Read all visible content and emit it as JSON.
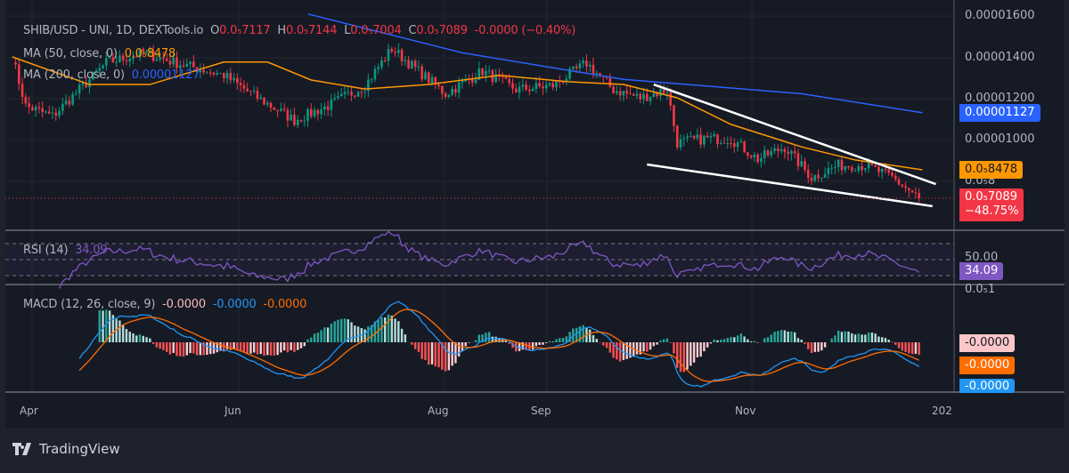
{
  "legend": {
    "symbol": "SHIB/USD - UNI, 1D, DEXTools.io",
    "open_label": "O",
    "open": "0.0₅7117",
    "high_label": "H",
    "high": "0.0₅7144",
    "low_label": "L",
    "low": "0.0₅7004",
    "close_label": "C",
    "close": "0.0₅7089",
    "change": "-0.0000 (−0.40%)",
    "ma50_label": "MA (50, close, 0)",
    "ma50_value": "0.0₅8478",
    "ma200_label": "MA (200, close, 0)",
    "ma200_value": "0.00001127",
    "rsi_label": "RSI (14)",
    "rsi_value": "34.09",
    "macd_label": "MACD (12, 26, close, 9)",
    "macd_hist": "-0.0000",
    "macd_line": "-0.0000",
    "macd_signal": "-0.0000"
  },
  "price_axis": [
    "0.00001600",
    "0.00001400",
    "0.00001200",
    "0.00001000",
    "0.0₅8"
  ],
  "tags": {
    "ma200": "0.00001127",
    "ma50": "0.0₅8478",
    "price": "0.0₅7089",
    "price_change": "−48.75%",
    "rsi_axis": "50.00",
    "rsi": "34.09",
    "macd_axis": "0.0₅1",
    "macd_hist": "-0.0000",
    "macd_signal": "-0.0000",
    "macd_line": "-0.0000"
  },
  "time_axis": [
    "Apr",
    "Jun",
    "Aug",
    "Sep",
    "Nov",
    "202"
  ],
  "brand": "TradingView",
  "colors": {
    "up": "#089981",
    "down": "#f23645",
    "ma50": "#ff9800",
    "ma200": "#2962ff",
    "rsi": "#7e57c2",
    "macd": "#2196f3",
    "signal": "#ff6d00"
  },
  "chart_data": {
    "type": "candlestick",
    "unit": "USD × 1e-6",
    "close_approx": [
      [
        "2023-03-27",
        14.0
      ],
      [
        "2023-03-31",
        11.6
      ],
      [
        "2023-04-08",
        11.1
      ],
      [
        "2023-04-16",
        12.4
      ],
      [
        "2023-04-24",
        13.7
      ],
      [
        "2023-05-05",
        14.2
      ],
      [
        "2023-05-15",
        13.7
      ],
      [
        "2023-05-29",
        13.1
      ],
      [
        "2023-06-08",
        12.0
      ],
      [
        "2023-06-19",
        10.9
      ],
      [
        "2023-06-29",
        11.6
      ],
      [
        "2023-07-10",
        12.6
      ],
      [
        "2023-07-18",
        14.4
      ],
      [
        "2023-07-26",
        13.3
      ],
      [
        "2023-08-03",
        12.2
      ],
      [
        "2023-08-14",
        13.3
      ],
      [
        "2023-08-24",
        12.4
      ],
      [
        "2023-09-04",
        12.6
      ],
      [
        "2023-09-14",
        13.7
      ],
      [
        "2023-09-22",
        12.4
      ],
      [
        "2023-09-30",
        12.0
      ],
      [
        "2023-10-08",
        12.4
      ],
      [
        "2023-10-11",
        9.8
      ],
      [
        "2023-10-19",
        10.0
      ],
      [
        "2023-10-27",
        10.0
      ],
      [
        "2023-11-04",
        9.0
      ],
      [
        "2023-11-12",
        9.6
      ],
      [
        "2023-11-20",
        8.1
      ],
      [
        "2023-11-28",
        8.7
      ],
      [
        "2023-12-06",
        8.7
      ],
      [
        "2023-12-14",
        8.1
      ],
      [
        "2023-12-22",
        7.089
      ]
    ],
    "ma50": [
      [
        "2023-03-27",
        14.0
      ],
      [
        "2023-04-19",
        12.65
      ],
      [
        "2023-05-07",
        12.65
      ],
      [
        "2023-05-29",
        13.75
      ],
      [
        "2023-06-11",
        13.75
      ],
      [
        "2023-06-24",
        12.87
      ],
      [
        "2023-07-10",
        12.43
      ],
      [
        "2023-07-29",
        12.65
      ],
      [
        "2023-08-19",
        13.1
      ],
      [
        "2023-09-09",
        12.78
      ],
      [
        "2023-09-25",
        12.65
      ],
      [
        "2023-10-11",
        12.0
      ],
      [
        "2023-10-27",
        10.7
      ],
      [
        "2023-11-17",
        9.6
      ],
      [
        "2023-12-03",
        8.96
      ],
      [
        "2023-12-23",
        8.478
      ]
    ],
    "ma200": [
      [
        "2023-06-23",
        16.1
      ],
      [
        "2023-08-08",
        14.2
      ],
      [
        "2023-09-25",
        12.9
      ],
      [
        "2023-11-17",
        12.2
      ],
      [
        "2023-12-23",
        11.27
      ]
    ],
    "trendlines": [
      [
        [
          "2023-10-04",
          12.65
        ],
        [
          "2023-12-27",
          7.78
        ]
      ],
      [
        [
          "2023-10-02",
          8.74
        ],
        [
          "2023-12-26",
          6.7
        ]
      ]
    ],
    "ylim": [
      6.4,
      16.4
    ],
    "rsi_levels": [
      70,
      50,
      30
    ],
    "rsi_last": 34.09,
    "change_pct": -48.75
  }
}
